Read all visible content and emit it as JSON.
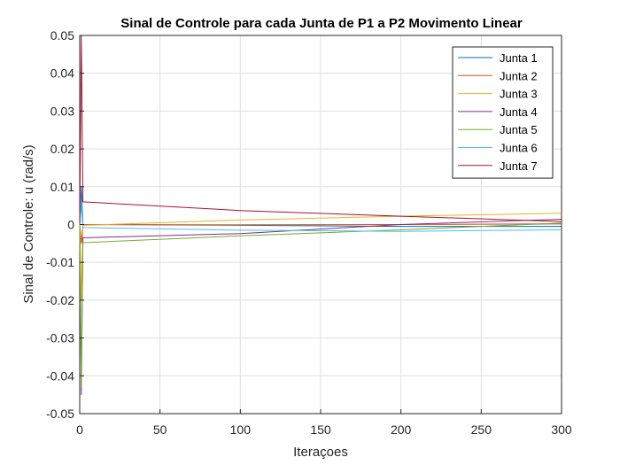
{
  "chart_data": {
    "type": "line",
    "title": "Sinal de Controle para cada Junta de P1 a P2 Movimento Linear",
    "xlabel": "Iteraçoes",
    "ylabel": "Sinal de Controle: u (rad/s)",
    "xlim": [
      0,
      300
    ],
    "ylim": [
      -0.05,
      0.05
    ],
    "xticks": [
      0,
      50,
      100,
      150,
      200,
      250,
      300
    ],
    "yticks": [
      -0.05,
      -0.04,
      -0.03,
      -0.02,
      -0.01,
      0,
      0.01,
      0.02,
      0.03,
      0.04,
      0.05
    ],
    "xtick_labels": [
      "0",
      "50",
      "100",
      "150",
      "200",
      "250",
      "300"
    ],
    "ytick_labels": [
      "-0.05",
      "-0.04",
      "-0.03",
      "-0.02",
      "-0.01",
      "0",
      "0.01",
      "0.02",
      "0.03",
      "0.04",
      "0.05"
    ],
    "grid": true,
    "legend_position": "top-right",
    "series": [
      {
        "name": "Junta 1",
        "color": "#0072BD",
        "x": [
          0,
          1,
          2,
          100,
          200,
          300
        ],
        "y": [
          0,
          0.01,
          0,
          -0.0002,
          -0.0005,
          -0.0005
        ]
      },
      {
        "name": "Junta 2",
        "color": "#D95319",
        "x": [
          0,
          1,
          2,
          100,
          200,
          300
        ],
        "y": [
          0,
          -0.005,
          0,
          -0.0001,
          0,
          0.0002
        ]
      },
      {
        "name": "Junta 3",
        "color": "#EDB120",
        "x": [
          0,
          1,
          2,
          100,
          200,
          300
        ],
        "y": [
          0,
          -0.02,
          -0.0002,
          0.0012,
          0.0022,
          0.003
        ]
      },
      {
        "name": "Junta 4",
        "color": "#7E2F8E",
        "x": [
          0,
          1,
          2,
          100,
          200,
          300
        ],
        "y": [
          0,
          -0.045,
          -0.0035,
          -0.0024,
          0,
          0.0014
        ]
      },
      {
        "name": "Junta 5",
        "color": "#77AC30",
        "x": [
          0,
          1,
          2,
          100,
          200,
          300
        ],
        "y": [
          0,
          -0.043,
          -0.0048,
          -0.003,
          -0.0014,
          0.0004
        ]
      },
      {
        "name": "Junta 6",
        "color": "#4DBEEE",
        "x": [
          0,
          1,
          2,
          100,
          200,
          300
        ],
        "y": [
          0,
          0.005,
          -0.0008,
          -0.0015,
          -0.0018,
          -0.0014
        ]
      },
      {
        "name": "Junta 7",
        "color": "#A2142F",
        "x": [
          0,
          1,
          2,
          100,
          200,
          300
        ],
        "y": [
          0,
          0.05,
          0.006,
          0.0037,
          0.0022,
          0.0008
        ]
      }
    ]
  }
}
